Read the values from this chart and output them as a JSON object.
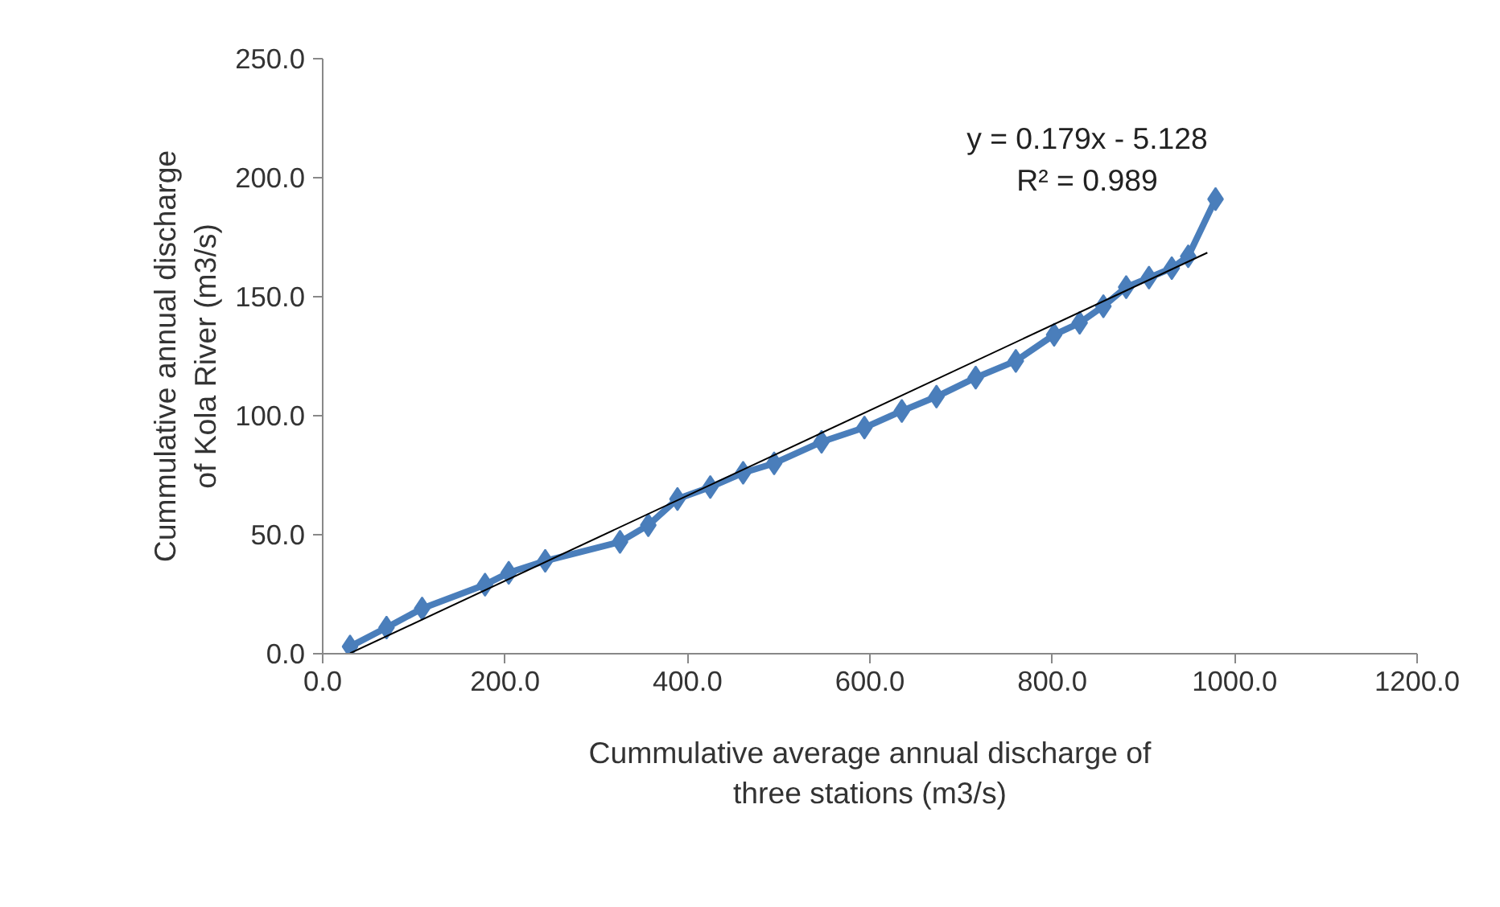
{
  "chart_data": {
    "type": "line",
    "xlabel": "Cummulative average annual discharge of\nthree stations (m3/s)",
    "ylabel": "Cummulative annual discharge\nof Kola River (m3/s)",
    "annotations": [
      "y = 0.179x - 5.128",
      "R² = 0.989"
    ],
    "marker": "diamond",
    "grid": false,
    "xlim": [
      0,
      1200
    ],
    "ylim": [
      0,
      250
    ],
    "xticks": [
      {
        "value": 0,
        "label": "0.0"
      },
      {
        "value": 200,
        "label": "200.0"
      },
      {
        "value": 400,
        "label": "400.0"
      },
      {
        "value": 600,
        "label": "600.0"
      },
      {
        "value": 800,
        "label": "800.0"
      },
      {
        "value": 1000,
        "label": "1000.0"
      },
      {
        "value": 1200,
        "label": "1200.0"
      }
    ],
    "yticks": [
      {
        "value": 0,
        "label": "0.0"
      },
      {
        "value": 50,
        "label": "50.0"
      },
      {
        "value": 100,
        "label": "100.0"
      },
      {
        "value": 150,
        "label": "150.0"
      },
      {
        "value": 200,
        "label": "200.0"
      },
      {
        "value": 250,
        "label": "250.0"
      }
    ],
    "series": [
      {
        "color": "#4a7ebb",
        "x": [
          30,
          70,
          109,
          178,
          204,
          244,
          326,
          357,
          389,
          425,
          461,
          495,
          547,
          594,
          635,
          673,
          716,
          760,
          802,
          830,
          856,
          881,
          906,
          931,
          949,
          979
        ],
        "values": [
          3,
          11,
          19,
          29,
          34,
          39,
          47,
          54,
          65,
          70,
          76,
          80,
          89,
          95,
          102,
          108,
          116,
          123,
          134,
          139,
          146,
          154,
          158,
          162,
          167,
          191
        ]
      },
      {
        "type": "line",
        "color": "#000000",
        "marker": "none",
        "x": [
          30,
          970
        ],
        "values": [
          0.2,
          168.5
        ]
      }
    ]
  }
}
